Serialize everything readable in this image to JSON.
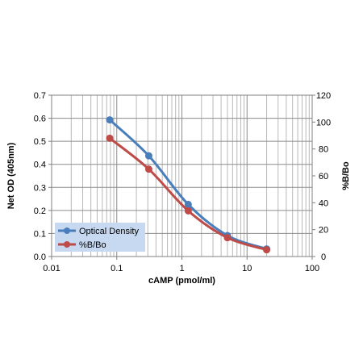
{
  "chart_data": {
    "type": "line",
    "xlabel": "cAMP (pmol/ml)",
    "ylabel": "Net OD (405nm)",
    "y2label": "%B/Bo",
    "x_scale": "log",
    "xlim": [
      0.01,
      100
    ],
    "ylim": [
      0,
      0.7
    ],
    "y2lim": [
      0,
      120
    ],
    "x_ticks": [
      "0.01",
      "0.1",
      "1",
      "10",
      "100"
    ],
    "y_ticks": [
      "0.0",
      "0.1",
      "0.2",
      "0.3",
      "0.4",
      "0.5",
      "0.6",
      "0.7"
    ],
    "y2_ticks": [
      "0",
      "20",
      "40",
      "60",
      "80",
      "100",
      "120"
    ],
    "grid": true,
    "legend": "bottom-left",
    "series": [
      {
        "name": "Optical Density",
        "axis": "left",
        "color": "#4a7ebb",
        "x": [
          0.078,
          0.31,
          1.25,
          5,
          20
        ],
        "y": [
          0.593,
          0.437,
          0.226,
          0.091,
          0.033
        ]
      },
      {
        "name": "%B/Bo",
        "axis": "right",
        "color": "#be4b48",
        "x": [
          0.078,
          0.31,
          1.25,
          5,
          20
        ],
        "y": [
          88,
          65,
          34,
          14,
          5
        ]
      }
    ]
  }
}
